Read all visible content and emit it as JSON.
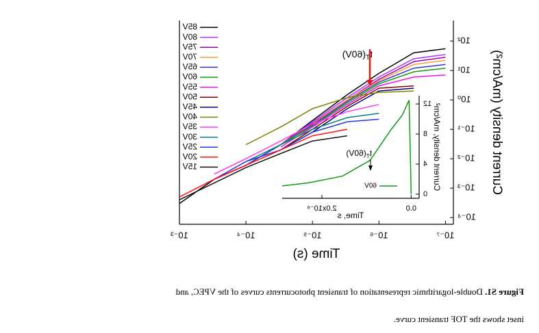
{
  "chart_data": {
    "type": "line",
    "x_label": "Time (s)",
    "y_label": "Current density (mA/cm²)",
    "log_x": true,
    "log_y": true,
    "xlim": [
      7.6e-08,
      0.001
    ],
    "ylim": [
      5.9e-05,
      500
    ],
    "xticks": [
      {
        "value": 1e-07,
        "label": "10⁻⁷"
      },
      {
        "value": 1e-06,
        "label": "10⁻⁶"
      },
      {
        "value": 1e-05,
        "label": "10⁻⁵"
      },
      {
        "value": 0.0001,
        "label": "10⁻⁴"
      },
      {
        "value": 0.001,
        "label": "10⁻³"
      }
    ],
    "yticks": [
      {
        "value": 0.0001,
        "label": "10⁻⁴"
      },
      {
        "value": 0.001,
        "label": "10⁻³"
      },
      {
        "value": 0.01,
        "label": "10⁻²"
      },
      {
        "value": 0.1,
        "label": "10⁻¹"
      },
      {
        "value": 1,
        "label": "10⁰"
      },
      {
        "value": 10,
        "label": "10¹"
      },
      {
        "value": 100,
        "label": "10²"
      }
    ],
    "x": [
      1e-07,
      3e-07,
      1e-06,
      3e-06,
      1e-05,
      3e-05,
      0.0001,
      0.0003,
      0.001
    ],
    "series": [
      {
        "name": "85V",
        "color": "#000000",
        "values": [
          55,
          40,
          8,
          1.5,
          0.2,
          0.03,
          0.006,
          0.002,
          0.0003
        ]
      },
      {
        "name": "80V",
        "color": "#b030ff",
        "values": [
          35,
          25,
          6,
          1.2,
          0.18,
          0.03,
          0.006,
          0.002,
          null
        ]
      },
      {
        "name": "75V",
        "color": "#9900aa",
        "values": [
          28,
          20,
          5,
          1.0,
          0.16,
          0.03,
          0.006,
          0.002,
          null
        ]
      },
      {
        "name": "70V",
        "color": "#ff9933",
        "values": [
          22,
          16,
          4.5,
          1.0,
          0.15,
          0.03,
          0.006,
          null,
          null
        ]
      },
      {
        "name": "65V",
        "color": "#3333cc",
        "values": [
          16,
          12,
          4,
          0.9,
          0.14,
          0.03,
          0.006,
          null,
          null
        ]
      },
      {
        "name": "60V",
        "color": "#119911",
        "values": [
          12,
          9,
          3.5,
          0.8,
          0.13,
          0.03,
          null,
          null,
          null
        ]
      },
      {
        "name": "55V",
        "color": "#ee11ee",
        "values": [
          7,
          6,
          3,
          0.7,
          0.12,
          0.025,
          null,
          null,
          null
        ]
      },
      {
        "name": "50V",
        "color": "#880000",
        "values": [
          null,
          3,
          2.5,
          0.6,
          0.1,
          0.02,
          null,
          null,
          null
        ]
      },
      {
        "name": "45V",
        "color": "#000080",
        "values": [
          null,
          2.5,
          2,
          0.5,
          0.08,
          0.02,
          null,
          null,
          null
        ]
      },
      {
        "name": "40V",
        "color": "#808000",
        "values": [
          null,
          2,
          1.8,
          1.2,
          0.5,
          0.12,
          0.03,
          null,
          null
        ]
      },
      {
        "name": "35V",
        "color": "#ff33ff",
        "values": [
          null,
          null,
          0.7,
          0.4,
          0.15,
          0.04,
          0.01,
          0.003,
          null
        ]
      },
      {
        "name": "30V",
        "color": "#008080",
        "values": [
          null,
          null,
          0.35,
          0.25,
          0.1,
          0.03,
          0.008,
          null,
          null
        ]
      },
      {
        "name": "25V",
        "color": "#2233dd",
        "values": [
          null,
          null,
          0.22,
          0.18,
          0.08,
          0.02,
          0.008,
          0.002,
          null
        ]
      },
      {
        "name": "20V",
        "color": "#ff1111",
        "values": [
          null,
          null,
          null,
          0.1,
          0.06,
          0.02,
          0.006,
          0.002,
          0.0005
        ]
      },
      {
        "name": "15V",
        "color": "#111111",
        "values": [
          null,
          null,
          null,
          0.06,
          0.04,
          0.015,
          0.005,
          0.0015,
          0.0004
        ]
      }
    ],
    "annotation": {
      "text": "t",
      "sub": "T",
      "rest": "(60V)",
      "color": "#ee1111"
    },
    "inset": {
      "type": "line",
      "x_label": "Time, s",
      "y_label": "Current density, mA/cm²",
      "xlim": [
        -1.8e-07,
        2.89e-06
      ],
      "ylim": [
        -0.55,
        13.1
      ],
      "xticks": [
        {
          "value": 0,
          "label": "0.0"
        },
        {
          "value": 2e-06,
          "label": "2.0x10⁻⁶"
        }
      ],
      "yticks": [
        0,
        4,
        8,
        12
      ],
      "x": [
        0,
        2e-08,
        4.6e-08,
        2e-07,
        4.6e-07,
        9.2e-07,
        1.54e-06,
        2.31e-06,
        2.89e-06
      ],
      "series": [
        {
          "name": "60V",
          "color": "#119911",
          "values": [
            0,
            6,
            12.5,
            10.5,
            8.5,
            4.5,
            2.4,
            1.5,
            1.1
          ]
        }
      ],
      "annotation": {
        "text": "t",
        "sub": "T",
        "rest": "(60V)"
      }
    }
  },
  "caption": {
    "label": "Figure S1.",
    "line1": "Double-logarithmic representation of transient photocurrents curves of the VPEC, and",
    "line2": "inset shows the TOF transient curve."
  }
}
